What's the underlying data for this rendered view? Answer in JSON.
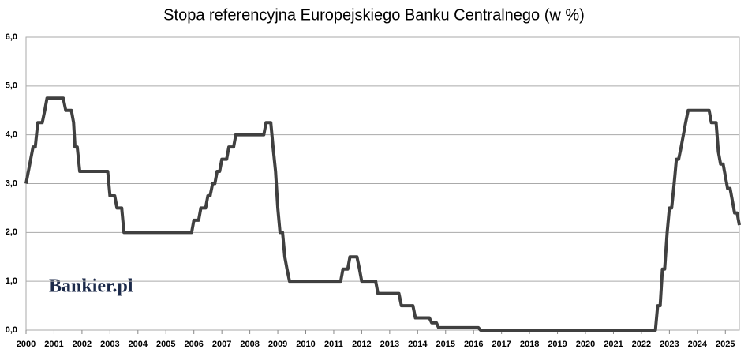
{
  "chart_data": {
    "type": "line",
    "title": "Stopa referencyjna Europejskiego Banku Centralnego (w %)",
    "logo": "Bankier.pl",
    "x": [
      2000.0,
      2000.25,
      2000.33,
      2000.42,
      2000.58,
      2000.67,
      2000.75,
      2001.33,
      2001.42,
      2001.62,
      2001.7,
      2001.75,
      2001.83,
      2001.92,
      2002.92,
      2003.0,
      2003.17,
      2003.25,
      2003.42,
      2003.5,
      2005.92,
      2006.0,
      2006.17,
      2006.25,
      2006.42,
      2006.5,
      2006.58,
      2006.67,
      2006.75,
      2006.83,
      2006.92,
      2007.0,
      2007.17,
      2007.25,
      2007.42,
      2007.5,
      2008.5,
      2008.58,
      2008.75,
      2008.83,
      2008.92,
      2009.0,
      2009.08,
      2009.17,
      2009.25,
      2009.33,
      2009.42,
      2011.25,
      2011.33,
      2011.5,
      2011.58,
      2011.83,
      2011.92,
      2012.0,
      2012.5,
      2012.58,
      2013.33,
      2013.42,
      2013.83,
      2013.92,
      2014.42,
      2014.5,
      2014.67,
      2014.75,
      2016.17,
      2016.25,
      2022.5,
      2022.58,
      2022.67,
      2022.75,
      2022.83,
      2022.92,
      2023.0,
      2023.08,
      2023.17,
      2023.25,
      2023.33,
      2023.42,
      2023.5,
      2023.58,
      2023.67,
      2024.42,
      2024.5,
      2024.67,
      2024.75,
      2024.83,
      2024.92,
      2025.0,
      2025.08,
      2025.17,
      2025.25,
      2025.33,
      2025.42,
      2025.5
    ],
    "series": [
      {
        "name": "Stopa referencyjna",
        "color": "#404040",
        "values": [
          3.0,
          3.75,
          3.75,
          4.25,
          4.25,
          4.5,
          4.75,
          4.75,
          4.5,
          4.5,
          4.25,
          3.75,
          3.75,
          3.25,
          3.25,
          2.75,
          2.75,
          2.5,
          2.5,
          2.0,
          2.0,
          2.25,
          2.25,
          2.5,
          2.5,
          2.75,
          2.75,
          3.0,
          3.0,
          3.25,
          3.25,
          3.5,
          3.5,
          3.75,
          3.75,
          4.0,
          4.0,
          4.25,
          4.25,
          3.75,
          3.25,
          2.5,
          2.0,
          2.0,
          1.5,
          1.25,
          1.0,
          1.0,
          1.25,
          1.25,
          1.5,
          1.5,
          1.25,
          1.0,
          1.0,
          0.75,
          0.75,
          0.5,
          0.5,
          0.25,
          0.25,
          0.15,
          0.15,
          0.05,
          0.05,
          0.0,
          0.0,
          0.5,
          0.5,
          1.25,
          1.25,
          2.0,
          2.5,
          2.5,
          3.0,
          3.5,
          3.5,
          3.75,
          4.0,
          4.25,
          4.5,
          4.5,
          4.25,
          4.25,
          3.65,
          3.4,
          3.4,
          3.15,
          2.9,
          2.9,
          2.65,
          2.4,
          2.4,
          2.15
        ]
      }
    ],
    "xlim": [
      2000,
      2025.5
    ],
    "xticks": [
      2000,
      2001,
      2002,
      2003,
      2004,
      2005,
      2006,
      2007,
      2008,
      2009,
      2010,
      2011,
      2012,
      2013,
      2014,
      2015,
      2016,
      2017,
      2018,
      2019,
      2020,
      2021,
      2022,
      2023,
      2024,
      2025
    ],
    "ylim": [
      0,
      6
    ],
    "yticks": [
      {
        "value": 0,
        "label": "0,0"
      },
      {
        "value": 1,
        "label": "1,0"
      },
      {
        "value": 2,
        "label": "2,0"
      },
      {
        "value": 3,
        "label": "3,0"
      },
      {
        "value": 4,
        "label": "4,0"
      },
      {
        "value": 5,
        "label": "5,0"
      },
      {
        "value": 6,
        "label": "6,0"
      }
    ],
    "grid": true
  }
}
